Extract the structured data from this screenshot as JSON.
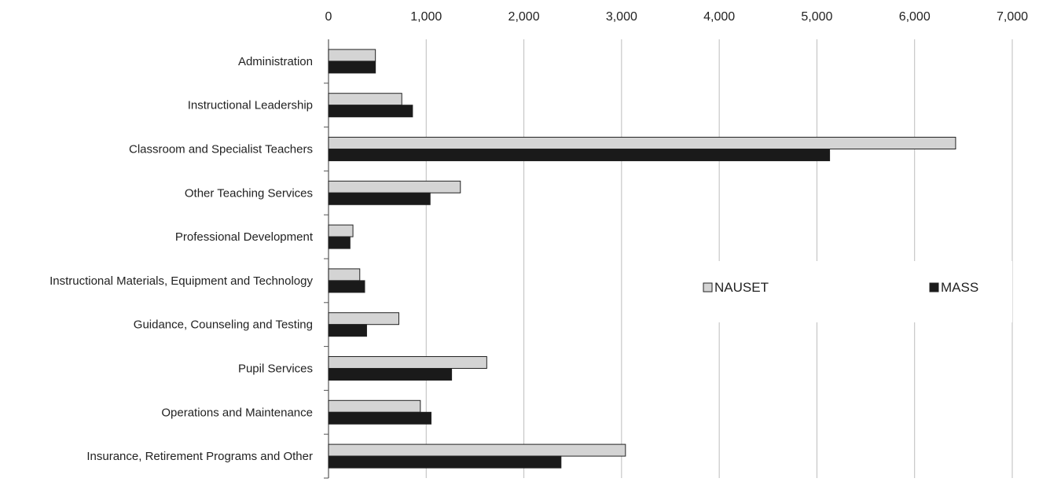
{
  "chart_data": {
    "type": "bar",
    "orientation": "horizontal",
    "title": "",
    "xlabel": "",
    "ylabel": "",
    "xlim": [
      0,
      7000
    ],
    "x_ticks": [
      "0",
      "1,000",
      "2,000",
      "3,000",
      "4,000",
      "5,000",
      "6,000",
      "7,000"
    ],
    "x_tick_values": [
      0,
      1000,
      2000,
      3000,
      4000,
      5000,
      6000,
      7000
    ],
    "grid": true,
    "legend_position": "middle-right",
    "categories": [
      "Administration",
      "Instructional Leadership",
      "Classroom and Specialist Teachers",
      "Other Teaching Services",
      "Professional Development",
      "Instructional Materials, Equipment and Technology",
      "Guidance, Counseling and Testing",
      "Pupil Services",
      "Operations and Maintenance",
      "Insurance, Retirement Programs and Other"
    ],
    "series": [
      {
        "name": "NAUSET",
        "color": "#d4d4d4",
        "values": [
          480,
          750,
          6420,
          1350,
          250,
          320,
          720,
          1620,
          940,
          3040
        ]
      },
      {
        "name": "MASS",
        "color": "#1a1a1a",
        "values": [
          480,
          860,
          5130,
          1040,
          220,
          370,
          390,
          1260,
          1050,
          2380
        ]
      }
    ]
  }
}
